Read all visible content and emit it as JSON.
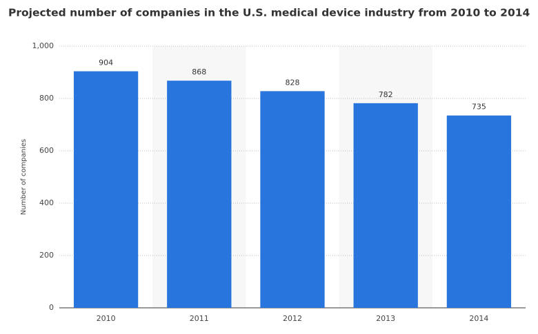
{
  "chart_data": {
    "type": "bar",
    "title": "Projected number of companies in the U.S. medical device industry from 2010 to 2014",
    "y_axis_label": "Number of companies",
    "categories": [
      "2010",
      "2011",
      "2012",
      "2013",
      "2014"
    ],
    "values": [
      904,
      868,
      828,
      782,
      735
    ],
    "color": "#2876dd",
    "ylim": [
      0,
      1000
    ],
    "yticks": [
      0,
      200,
      400,
      600,
      800,
      {
        "value": 1000,
        "label": "1,000"
      }
    ],
    "grid": true
  }
}
